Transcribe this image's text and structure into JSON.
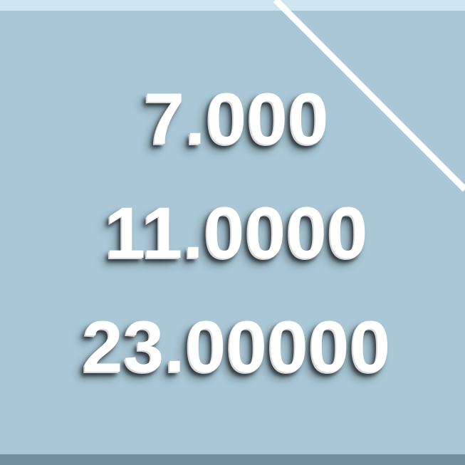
{
  "numbers": {
    "line_1": "7.000",
    "line_2": "11.0000",
    "line_3": "23.00000"
  },
  "colors": {
    "background": "#a9c7d6",
    "top_band": "#cfe6f2",
    "diagonal_line": "#ffffff",
    "bottom_band": "#6f8d9a",
    "text": "#ffffff"
  }
}
